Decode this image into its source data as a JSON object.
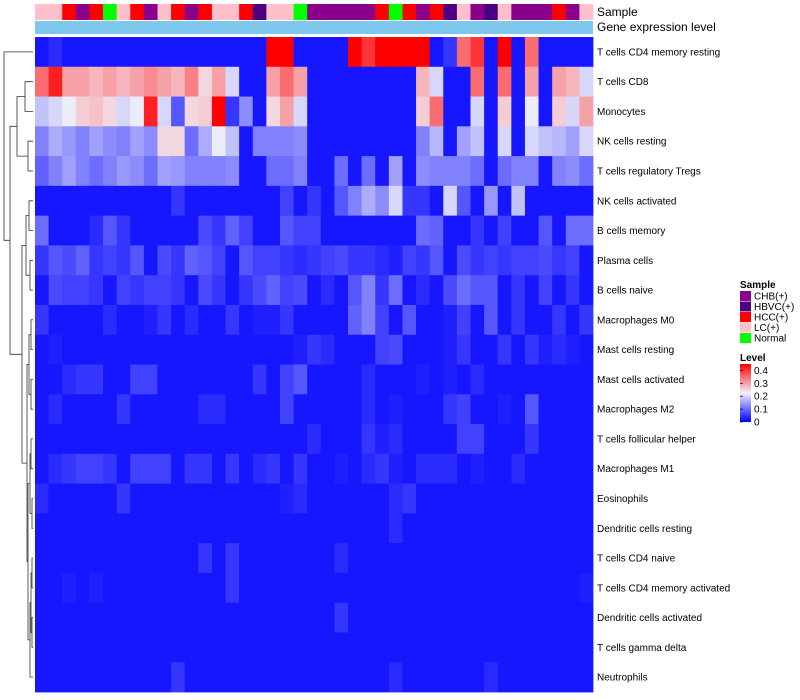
{
  "chart_data": {
    "type": "heatmap",
    "title": "",
    "annotation_labels": {
      "sample": "Sample",
      "gene_expression": "Gene expression level"
    },
    "legend_position": "right",
    "colors": {
      "low": "#0000ff",
      "mid": "#f2f2fa",
      "high": "#ff0000",
      "annotation_bar": "#7ec8ee",
      "dendrogram": "#333333"
    },
    "value_range": [
      0,
      0.45
    ],
    "level_legend": {
      "title": "Level",
      "ticks": [
        "0.4",
        "0.3",
        "0.2",
        "0.1",
        "0"
      ],
      "tick_values": [
        0.4,
        0.3,
        0.2,
        0.1,
        0
      ]
    },
    "sample_legend": {
      "title": "Sample",
      "groups": [
        {
          "name": "CHB(+)",
          "color": "#8b008b"
        },
        {
          "name": "HBVC(+)",
          "color": "#4b0082"
        },
        {
          "name": "HCC(+)",
          "color": "#ff0000"
        },
        {
          "name": "LC(+)",
          "color": "#ffc0cb"
        },
        {
          "name": "Normal",
          "color": "#00ff00"
        }
      ]
    },
    "columns": 41,
    "sample_groups": [
      "LC(+)",
      "LC(+)",
      "HCC(+)",
      "CHB(+)",
      "HCC(+)",
      "Normal",
      "LC(+)",
      "HCC(+)",
      "CHB(+)",
      "LC(+)",
      "HCC(+)",
      "CHB(+)",
      "HCC(+)",
      "LC(+)",
      "LC(+)",
      "HCC(+)",
      "HBVC(+)",
      "LC(+)",
      "LC(+)",
      "Normal",
      "CHB(+)",
      "CHB(+)",
      "CHB(+)",
      "CHB(+)",
      "CHB(+)",
      "HCC(+)",
      "Normal",
      "HCC(+)",
      "CHB(+)",
      "HCC(+)",
      "HBVC(+)",
      "LC(+)",
      "CHB(+)",
      "HBVC(+)",
      "LC(+)",
      "CHB(+)",
      "CHB(+)",
      "CHB(+)",
      "HCC(+)",
      "CHB(+)",
      "LC(+)"
    ],
    "rows": [
      {
        "name": "T cells CD4 memory resting",
        "values": [
          0.02,
          0.04,
          0.02,
          0.02,
          0.02,
          0.02,
          0.02,
          0.02,
          0.02,
          0.02,
          0.02,
          0.02,
          0.02,
          0.02,
          0.02,
          0.02,
          0.02,
          0.45,
          0.45,
          0.02,
          0.02,
          0.02,
          0.02,
          0.45,
          0.4,
          0.45,
          0.45,
          0.45,
          0.45,
          0.02,
          0.05,
          0.35,
          0.4,
          0.02,
          0.45,
          0.02,
          0.35,
          0.02,
          0.02,
          0.02,
          0.02
        ]
      },
      {
        "name": "T cells CD8",
        "values": [
          0.35,
          0.42,
          0.3,
          0.3,
          0.28,
          0.3,
          0.28,
          0.3,
          0.32,
          0.3,
          0.28,
          0.33,
          0.25,
          0.3,
          0.2,
          0.02,
          0.02,
          0.3,
          0.35,
          0.3,
          0.02,
          0.02,
          0.02,
          0.02,
          0.02,
          0.02,
          0.02,
          0.02,
          0.28,
          0.2,
          0.02,
          0.02,
          0.35,
          0.02,
          0.35,
          0.02,
          0.3,
          0.02,
          0.3,
          0.28,
          0.2
        ]
      },
      {
        "name": "Monocytes",
        "values": [
          0.18,
          0.2,
          0.22,
          0.26,
          0.27,
          0.25,
          0.2,
          0.22,
          0.42,
          0.2,
          0.08,
          0.25,
          0.26,
          0.45,
          0.05,
          0.13,
          0.02,
          0.25,
          0.3,
          0.2,
          0.02,
          0.02,
          0.02,
          0.02,
          0.02,
          0.02,
          0.02,
          0.02,
          0.26,
          0.35,
          0.02,
          0.02,
          0.2,
          0.02,
          0.26,
          0.02,
          0.22,
          0.02,
          0.26,
          0.2,
          0.3
        ]
      },
      {
        "name": "NK cells resting",
        "values": [
          0.12,
          0.16,
          0.14,
          0.12,
          0.15,
          0.13,
          0.12,
          0.15,
          0.13,
          0.25,
          0.25,
          0.1,
          0.16,
          0.22,
          0.18,
          0.02,
          0.12,
          0.12,
          0.12,
          0.13,
          0.02,
          0.02,
          0.02,
          0.02,
          0.02,
          0.02,
          0.02,
          0.02,
          0.12,
          0.17,
          0.02,
          0.15,
          0.18,
          0.02,
          0.2,
          0.02,
          0.2,
          0.18,
          0.17,
          0.15,
          0.2
        ]
      },
      {
        "name": "T cells regulatory  Tregs",
        "values": [
          0.09,
          0.12,
          0.15,
          0.12,
          0.1,
          0.12,
          0.14,
          0.13,
          0.1,
          0.15,
          0.14,
          0.12,
          0.12,
          0.12,
          0.13,
          0.02,
          0.02,
          0.1,
          0.1,
          0.12,
          0.02,
          0.02,
          0.1,
          0.02,
          0.1,
          0.02,
          0.15,
          0.02,
          0.13,
          0.12,
          0.12,
          0.12,
          0.1,
          0.02,
          0.1,
          0.12,
          0.12,
          0.02,
          0.12,
          0.13,
          0.1
        ]
      },
      {
        "name": "NK cells activated",
        "values": [
          0.02,
          0.02,
          0.02,
          0.02,
          0.02,
          0.02,
          0.02,
          0.02,
          0.02,
          0.02,
          0.05,
          0.02,
          0.02,
          0.02,
          0.02,
          0.02,
          0.02,
          0.02,
          0.06,
          0.02,
          0.05,
          0.02,
          0.08,
          0.12,
          0.16,
          0.13,
          0.2,
          0.05,
          0.05,
          0.02,
          0.2,
          0.08,
          0.02,
          0.14,
          0.02,
          0.18,
          0.02,
          0.02,
          0.02,
          0.02,
          0.02
        ]
      },
      {
        "name": "B cells memory",
        "values": [
          0.1,
          0.02,
          0.02,
          0.02,
          0.04,
          0.08,
          0.05,
          0.02,
          0.02,
          0.02,
          0.02,
          0.02,
          0.07,
          0.05,
          0.09,
          0.06,
          0.02,
          0.02,
          0.08,
          0.06,
          0.06,
          0.02,
          0.02,
          0.02,
          0.02,
          0.02,
          0.02,
          0.02,
          0.1,
          0.09,
          0.02,
          0.02,
          0.05,
          0.02,
          0.06,
          0.02,
          0.02,
          0.08,
          0.02,
          0.1,
          0.1
        ]
      },
      {
        "name": "Plasma cells",
        "values": [
          0.05,
          0.08,
          0.07,
          0.09,
          0.05,
          0.06,
          0.05,
          0.08,
          0.02,
          0.07,
          0.05,
          0.09,
          0.08,
          0.06,
          0.02,
          0.08,
          0.06,
          0.06,
          0.05,
          0.04,
          0.05,
          0.06,
          0.07,
          0.05,
          0.05,
          0.04,
          0.03,
          0.06,
          0.05,
          0.08,
          0.02,
          0.07,
          0.05,
          0.06,
          0.05,
          0.06,
          0.06,
          0.07,
          0.05,
          0.06,
          0.02
        ]
      },
      {
        "name": "B cells naive",
        "values": [
          0.02,
          0.07,
          0.06,
          0.06,
          0.05,
          0.02,
          0.06,
          0.05,
          0.06,
          0.06,
          0.05,
          0.02,
          0.07,
          0.05,
          0.02,
          0.05,
          0.07,
          0.09,
          0.06,
          0.07,
          0.02,
          0.04,
          0.02,
          0.08,
          0.12,
          0.05,
          0.1,
          0.02,
          0.04,
          0.02,
          0.07,
          0.1,
          0.08,
          0.08,
          0.02,
          0.05,
          0.02,
          0.06,
          0.02,
          0.05,
          0.02
        ]
      },
      {
        "name": "Macrophages M0",
        "values": [
          0.05,
          0.02,
          0.02,
          0.02,
          0.02,
          0.04,
          0.02,
          0.02,
          0.03,
          0.05,
          0.02,
          0.04,
          0.02,
          0.02,
          0.05,
          0.02,
          0.03,
          0.03,
          0.05,
          0.02,
          0.02,
          0.02,
          0.02,
          0.09,
          0.12,
          0.06,
          0.02,
          0.08,
          0.02,
          0.02,
          0.03,
          0.06,
          0.02,
          0.08,
          0.02,
          0.05,
          0.02,
          0.02,
          0.05,
          0.02,
          0.05
        ]
      },
      {
        "name": "Mast cells resting",
        "values": [
          0.02,
          0.03,
          0.02,
          0.02,
          0.02,
          0.02,
          0.02,
          0.02,
          0.02,
          0.02,
          0.02,
          0.02,
          0.02,
          0.02,
          0.02,
          0.02,
          0.02,
          0.02,
          0.02,
          0.03,
          0.05,
          0.04,
          0.02,
          0.02,
          0.02,
          0.06,
          0.07,
          0.02,
          0.02,
          0.02,
          0.03,
          0.05,
          0.02,
          0.02,
          0.05,
          0.02,
          0.05,
          0.03,
          0.04,
          0.03,
          0.02
        ]
      },
      {
        "name": "Mast cells activated",
        "values": [
          0.02,
          0.02,
          0.04,
          0.05,
          0.05,
          0.02,
          0.02,
          0.06,
          0.06,
          0.02,
          0.02,
          0.02,
          0.02,
          0.02,
          0.02,
          0.02,
          0.05,
          0.02,
          0.06,
          0.08,
          0.02,
          0.02,
          0.02,
          0.02,
          0.04,
          0.02,
          0.02,
          0.02,
          0.03,
          0.02,
          0.03,
          0.02,
          0.04,
          0.02,
          0.02,
          0.02,
          0.02,
          0.02,
          0.02,
          0.02,
          0.02
        ]
      },
      {
        "name": "Macrophages M2",
        "values": [
          0.02,
          0.04,
          0.02,
          0.02,
          0.02,
          0.02,
          0.05,
          0.02,
          0.02,
          0.02,
          0.02,
          0.02,
          0.04,
          0.04,
          0.02,
          0.02,
          0.02,
          0.02,
          0.06,
          0.02,
          0.02,
          0.02,
          0.02,
          0.02,
          0.04,
          0.02,
          0.03,
          0.02,
          0.02,
          0.02,
          0.05,
          0.06,
          0.02,
          0.02,
          0.03,
          0.02,
          0.08,
          0.02,
          0.02,
          0.02,
          0.02
        ]
      },
      {
        "name": "T cells follicular helper",
        "values": [
          0.02,
          0.02,
          0.02,
          0.02,
          0.02,
          0.02,
          0.02,
          0.02,
          0.02,
          0.02,
          0.02,
          0.02,
          0.02,
          0.02,
          0.02,
          0.02,
          0.02,
          0.02,
          0.02,
          0.02,
          0.04,
          0.02,
          0.02,
          0.02,
          0.05,
          0.03,
          0.04,
          0.02,
          0.02,
          0.02,
          0.02,
          0.06,
          0.06,
          0.02,
          0.02,
          0.02,
          0.05,
          0.02,
          0.02,
          0.02,
          0.02
        ]
      },
      {
        "name": "Macrophages M1",
        "values": [
          0.02,
          0.04,
          0.05,
          0.06,
          0.06,
          0.05,
          0.02,
          0.06,
          0.06,
          0.06,
          0.02,
          0.05,
          0.05,
          0.02,
          0.05,
          0.02,
          0.04,
          0.05,
          0.02,
          0.05,
          0.02,
          0.02,
          0.03,
          0.02,
          0.04,
          0.05,
          0.03,
          0.02,
          0.04,
          0.04,
          0.04,
          0.02,
          0.03,
          0.02,
          0.02,
          0.04,
          0.02,
          0.02,
          0.02,
          0.02,
          0.02
        ]
      },
      {
        "name": "Eosinophils",
        "values": [
          0.04,
          0.02,
          0.02,
          0.02,
          0.02,
          0.02,
          0.05,
          0.02,
          0.02,
          0.02,
          0.02,
          0.02,
          0.02,
          0.02,
          0.02,
          0.02,
          0.02,
          0.02,
          0.03,
          0.04,
          0.02,
          0.02,
          0.02,
          0.02,
          0.02,
          0.02,
          0.04,
          0.05,
          0.02,
          0.02,
          0.02,
          0.02,
          0.02,
          0.02,
          0.02,
          0.02,
          0.02,
          0.02,
          0.02,
          0.02,
          0.02
        ]
      },
      {
        "name": "Dendritic cells resting",
        "values": [
          0.02,
          0.02,
          0.02,
          0.02,
          0.02,
          0.02,
          0.02,
          0.02,
          0.02,
          0.02,
          0.02,
          0.02,
          0.02,
          0.02,
          0.02,
          0.02,
          0.02,
          0.02,
          0.02,
          0.02,
          0.02,
          0.02,
          0.02,
          0.02,
          0.02,
          0.02,
          0.04,
          0.02,
          0.02,
          0.02,
          0.02,
          0.02,
          0.02,
          0.02,
          0.02,
          0.02,
          0.02,
          0.02,
          0.02,
          0.02,
          0.02
        ]
      },
      {
        "name": "T cells CD4 naive",
        "values": [
          0.02,
          0.02,
          0.02,
          0.02,
          0.02,
          0.02,
          0.02,
          0.02,
          0.02,
          0.02,
          0.02,
          0.02,
          0.05,
          0.02,
          0.05,
          0.02,
          0.02,
          0.02,
          0.02,
          0.02,
          0.02,
          0.02,
          0.04,
          0.02,
          0.02,
          0.02,
          0.02,
          0.02,
          0.02,
          0.02,
          0.02,
          0.02,
          0.02,
          0.02,
          0.02,
          0.02,
          0.02,
          0.02,
          0.02,
          0.02,
          0.02
        ]
      },
      {
        "name": "T cells CD4 memory activated",
        "values": [
          0.02,
          0.02,
          0.03,
          0.02,
          0.03,
          0.02,
          0.02,
          0.02,
          0.02,
          0.02,
          0.02,
          0.02,
          0.02,
          0.02,
          0.05,
          0.02,
          0.02,
          0.02,
          0.02,
          0.02,
          0.02,
          0.02,
          0.02,
          0.02,
          0.02,
          0.02,
          0.02,
          0.02,
          0.02,
          0.02,
          0.02,
          0.02,
          0.02,
          0.02,
          0.02,
          0.02,
          0.02,
          0.02,
          0.02,
          0.02,
          0.03
        ]
      },
      {
        "name": "Dendritic cells activated",
        "values": [
          0.02,
          0.02,
          0.02,
          0.02,
          0.02,
          0.02,
          0.02,
          0.02,
          0.02,
          0.02,
          0.02,
          0.02,
          0.02,
          0.02,
          0.02,
          0.02,
          0.02,
          0.02,
          0.02,
          0.02,
          0.02,
          0.02,
          0.05,
          0.02,
          0.02,
          0.02,
          0.02,
          0.02,
          0.02,
          0.02,
          0.02,
          0.02,
          0.02,
          0.02,
          0.02,
          0.02,
          0.02,
          0.02,
          0.02,
          0.02,
          0.02
        ]
      },
      {
        "name": "T cells gamma delta",
        "values": [
          0.02,
          0.02,
          0.02,
          0.02,
          0.02,
          0.02,
          0.02,
          0.02,
          0.02,
          0.02,
          0.02,
          0.02,
          0.02,
          0.02,
          0.02,
          0.02,
          0.02,
          0.02,
          0.02,
          0.02,
          0.02,
          0.02,
          0.02,
          0.02,
          0.02,
          0.02,
          0.02,
          0.02,
          0.02,
          0.02,
          0.02,
          0.02,
          0.02,
          0.02,
          0.02,
          0.02,
          0.02,
          0.02,
          0.02,
          0.02,
          0.02
        ]
      },
      {
        "name": "Neutrophils",
        "values": [
          0.02,
          0.02,
          0.02,
          0.02,
          0.02,
          0.02,
          0.02,
          0.02,
          0.02,
          0.02,
          0.05,
          0.02,
          0.02,
          0.02,
          0.02,
          0.02,
          0.02,
          0.02,
          0.02,
          0.02,
          0.02,
          0.02,
          0.02,
          0.02,
          0.02,
          0.02,
          0.04,
          0.02,
          0.02,
          0.02,
          0.02,
          0.02,
          0.02,
          0.04,
          0.02,
          0.02,
          0.02,
          0.02,
          0.02,
          0.02,
          0.02
        ]
      }
    ]
  }
}
